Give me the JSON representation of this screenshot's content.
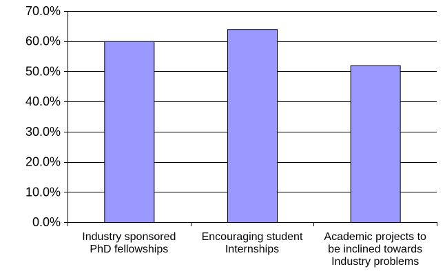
{
  "chart_data": {
    "type": "bar",
    "title": "",
    "xlabel": "",
    "ylabel": "",
    "categories": [
      [
        "Industry sponsored",
        "PhD fellowships"
      ],
      [
        "Encouraging student",
        "Internships"
      ],
      [
        "Academic projects to",
        "be inclined towards",
        "Industry problems"
      ]
    ],
    "values": [
      60,
      64,
      52
    ],
    "ylim": [
      0,
      70
    ],
    "yticks": [
      0,
      10,
      20,
      30,
      40,
      50,
      60,
      70
    ],
    "ytick_labels": [
      "0.0%",
      "10.0%",
      "20.0%",
      "30.0%",
      "40.0%",
      "50.0%",
      "60.0%",
      "70.0%"
    ],
    "grid": true,
    "legend": "none",
    "colors": {
      "bar_fill": "#9999ff",
      "bar_stroke": "#000000",
      "grid": "#000000",
      "axis": "#000000"
    }
  }
}
